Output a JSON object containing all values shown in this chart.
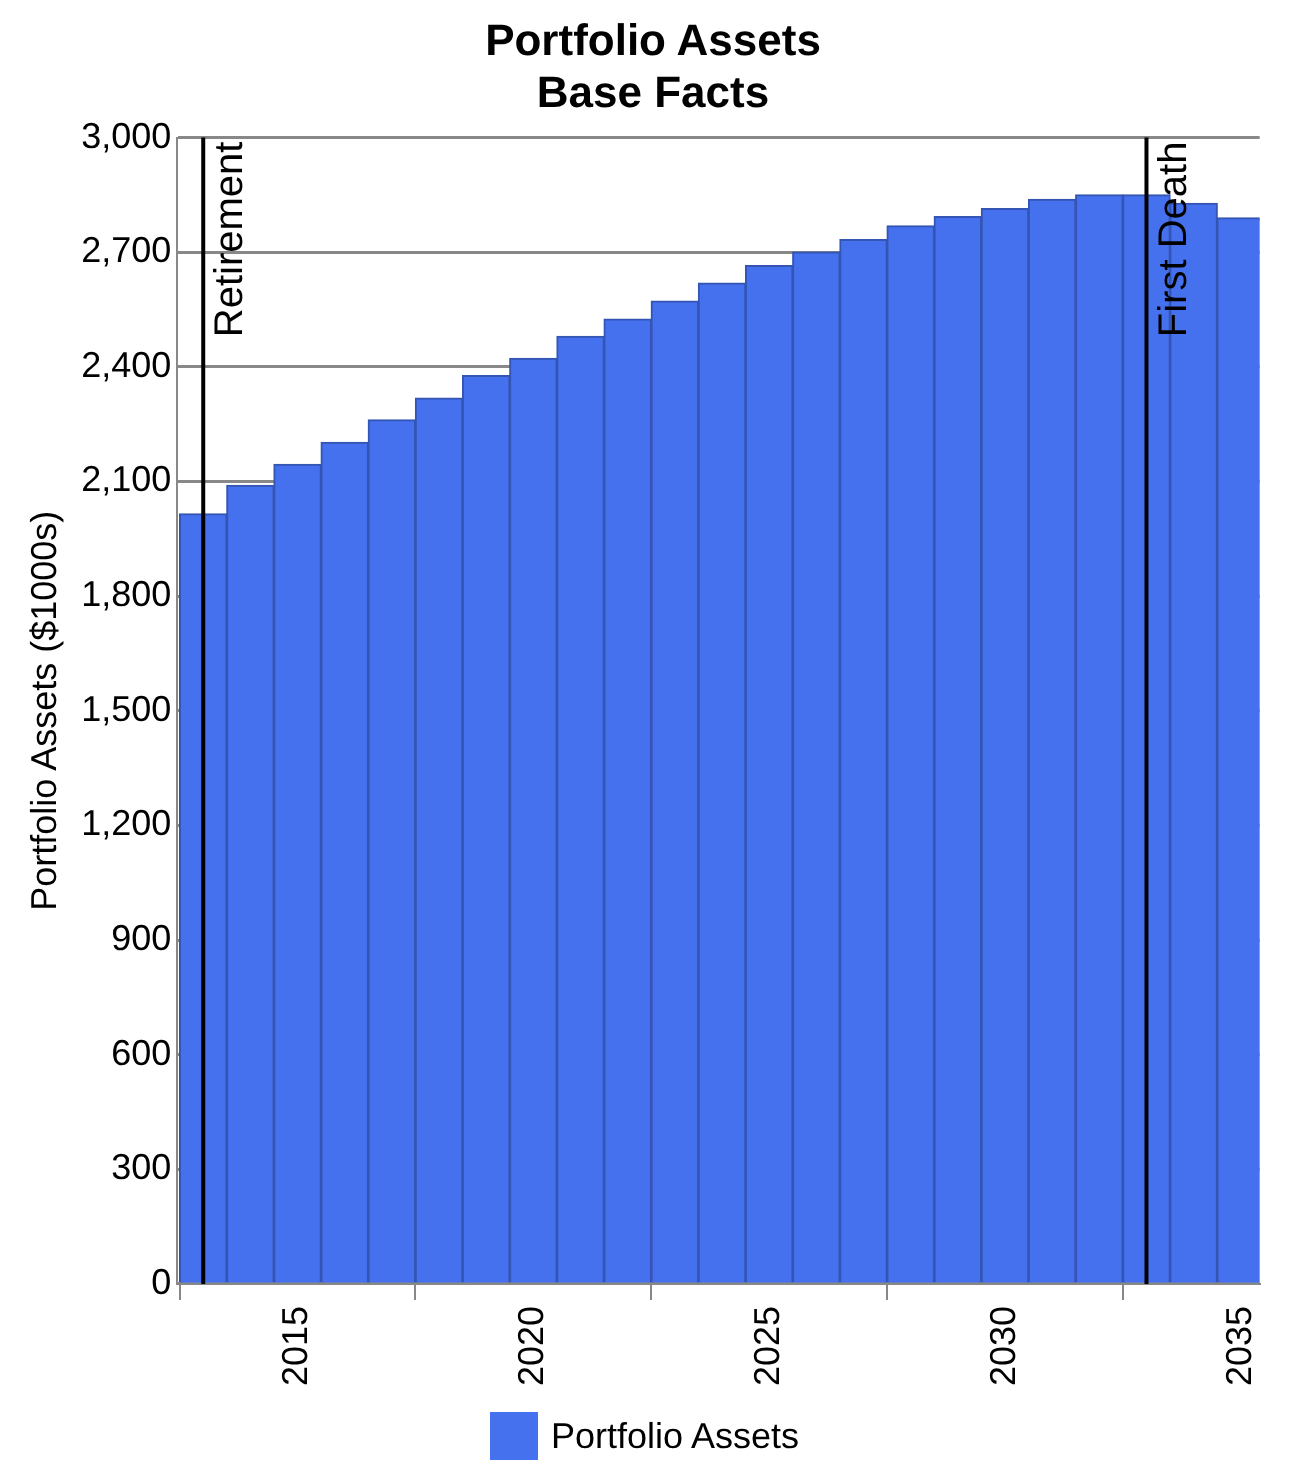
{
  "chart_data": {
    "type": "bar",
    "title": "Portfolio Assets",
    "subtitle": "Base Facts",
    "ylabel": "Portfolio Assets ($1000s)",
    "x": [
      2013,
      2014,
      2015,
      2016,
      2017,
      2018,
      2019,
      2020,
      2021,
      2022,
      2023,
      2024,
      2025,
      2026,
      2027,
      2028,
      2029,
      2030,
      2031,
      2032,
      2033,
      2034,
      2035
    ],
    "series": [
      {
        "name": "Portfolio Assets",
        "color": "#4571ef",
        "values": [
          2015,
          2090,
          2145,
          2202,
          2261,
          2318,
          2377,
          2422,
          2480,
          2525,
          2572,
          2619,
          2665,
          2700,
          2733,
          2769,
          2793,
          2814,
          2838,
          2850,
          2850,
          2828,
          2790
        ]
      }
    ],
    "xlim": [
      2012.45,
      2035.4
    ],
    "xticks": [
      2015,
      2020,
      2025,
      2030,
      2035
    ],
    "ylim": [
      0,
      3000
    ],
    "yticks": [
      0,
      300,
      600,
      900,
      {
        "value": 1200,
        "label": "1,200"
      },
      {
        "value": 1500,
        "label": "1,500"
      },
      {
        "value": 1800,
        "label": "1,800"
      },
      {
        "value": 2100,
        "label": "2,100"
      },
      {
        "value": 2400,
        "label": "2,400"
      },
      {
        "value": 2700,
        "label": "2,700"
      },
      {
        "value": 3000,
        "label": "3,000"
      }
    ],
    "ref_lines": [
      {
        "axis": "x",
        "value": 2013,
        "label": "Retirement",
        "color": "#000000"
      },
      {
        "axis": "x",
        "value": 2033,
        "label": "First Death",
        "color": "#000000"
      }
    ],
    "grid": "y",
    "legend": "bottom"
  }
}
